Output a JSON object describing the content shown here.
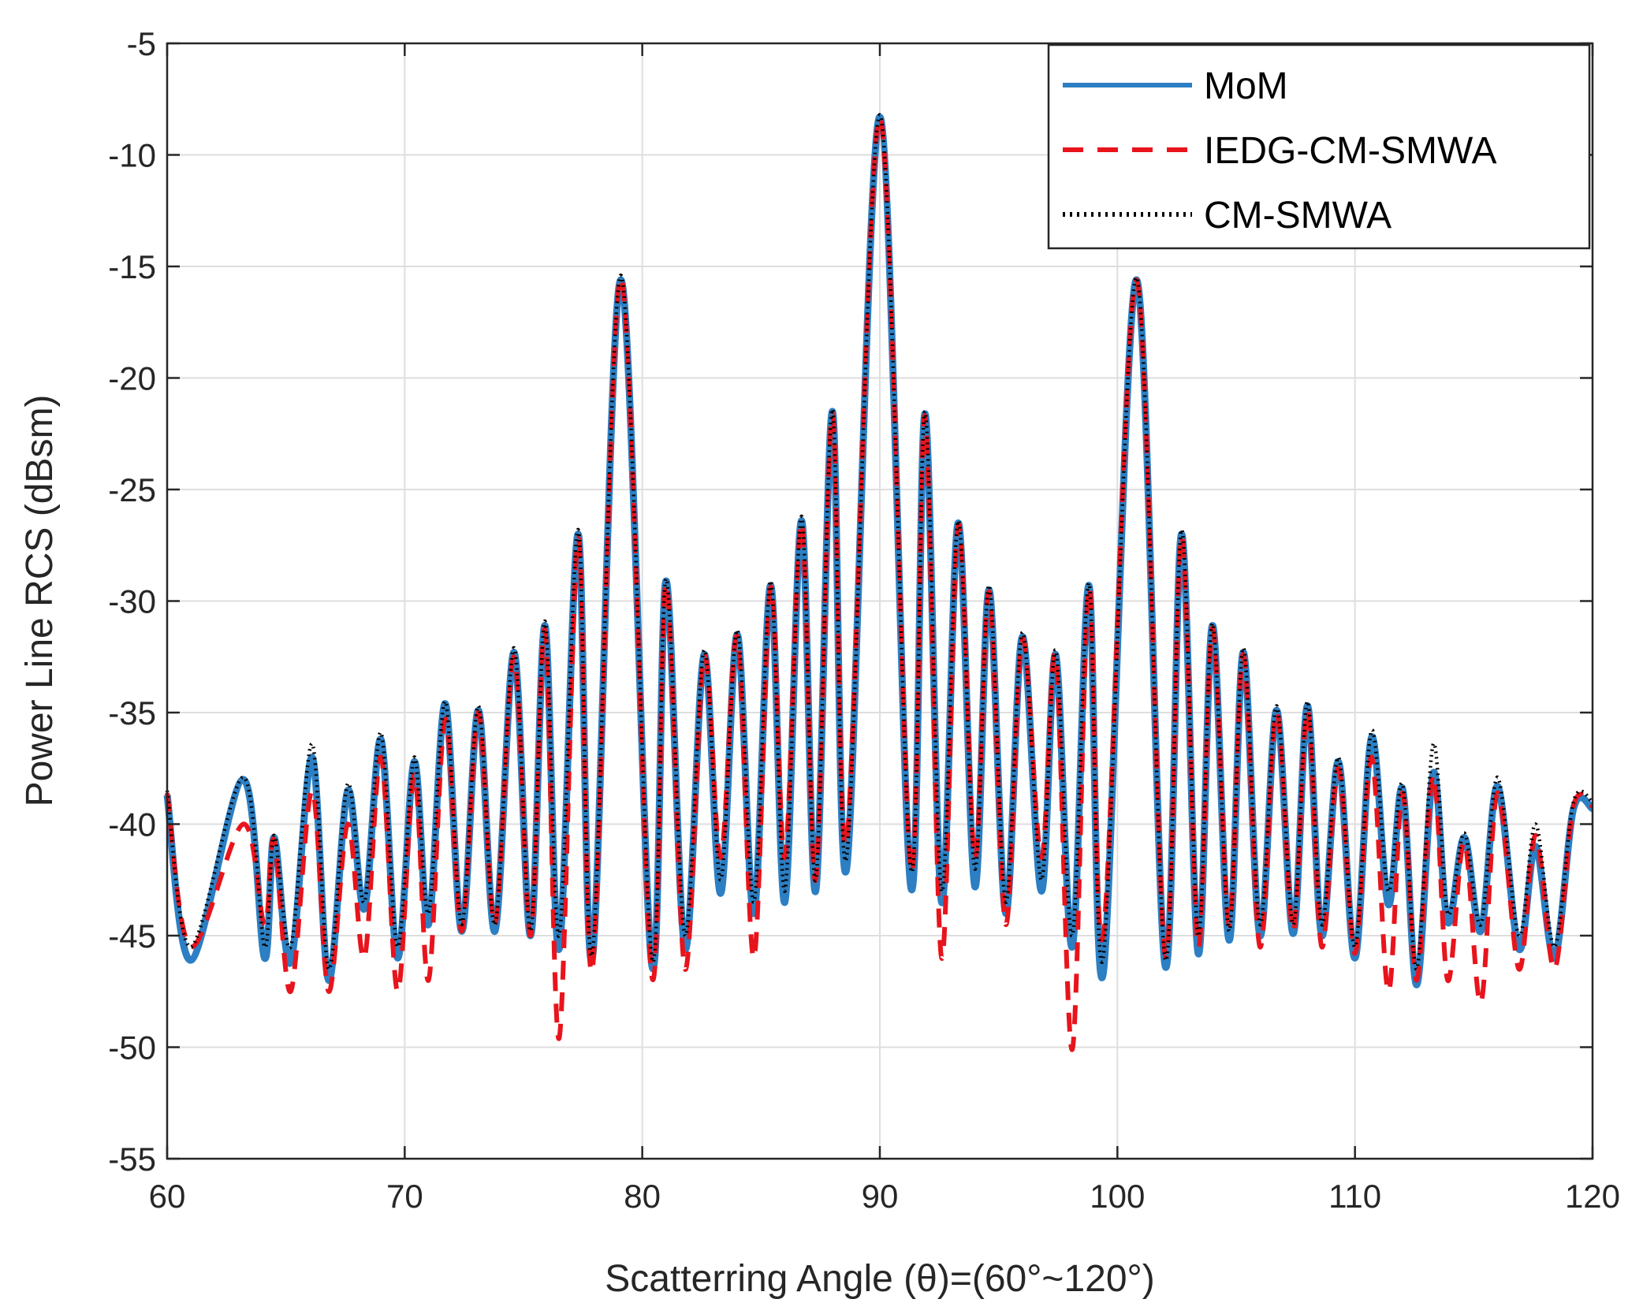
{
  "chart_data": {
    "type": "line",
    "title": "",
    "xlabel": "Scatterring Angle (θ)=(60°~120°)",
    "ylabel": "Power Line RCS (dBsm)",
    "xlim": [
      60,
      120
    ],
    "ylim": [
      -55,
      -5
    ],
    "xticks": [
      60,
      70,
      80,
      90,
      100,
      110,
      120
    ],
    "yticks": [
      -5,
      -10,
      -15,
      -20,
      -25,
      -30,
      -35,
      -40,
      -45,
      -50,
      -55
    ],
    "xtick_labels": [
      "60",
      "70",
      "80",
      "90",
      "100",
      "110",
      "120"
    ],
    "ytick_labels": [
      "-5",
      "-10",
      "-15",
      "-20",
      "-25",
      "-30",
      "-35",
      "-40",
      "-45",
      "-50",
      "-55"
    ],
    "grid": true,
    "legend_position": "top-right",
    "x": [
      60,
      61.0,
      63.2,
      64.1,
      64.5,
      65.2,
      66.1,
      66.8,
      67.6,
      68.3,
      69.0,
      69.7,
      70.4,
      71.0,
      71.7,
      72.4,
      73.1,
      73.8,
      74.6,
      75.3,
      75.9,
      76.5,
      77.3,
      77.9,
      79.1,
      80.4,
      81.0,
      81.8,
      82.6,
      83.3,
      84.0,
      84.7,
      85.4,
      86.0,
      86.7,
      87.3,
      88.0,
      88.6,
      90.0,
      91.3,
      91.9,
      92.6,
      93.3,
      94.0,
      94.6,
      95.3,
      96.0,
      96.8,
      97.4,
      98.1,
      98.8,
      99.4,
      100.8,
      102.0,
      102.7,
      103.4,
      104.0,
      104.7,
      105.3,
      106.0,
      106.7,
      107.4,
      108.0,
      108.6,
      109.3,
      110.0,
      110.7,
      111.4,
      112.0,
      112.6,
      113.3,
      113.9,
      114.6,
      115.3,
      116.0,
      116.9,
      117.6,
      118.4,
      119.2,
      120
    ],
    "series": [
      {
        "name": "MoM",
        "color": "#2c7fc3",
        "style": "solid",
        "values": [
          -38.7,
          -46.1,
          -38.0,
          -46.0,
          -40.6,
          -46.2,
          -37.0,
          -47.0,
          -38.5,
          -43.8,
          -36.2,
          -46.0,
          -37.2,
          -44.5,
          -34.6,
          -44.8,
          -34.9,
          -44.8,
          -32.3,
          -45.0,
          -31.1,
          -45.6,
          -27.0,
          -46.0,
          -15.6,
          -46.3,
          -29.1,
          -45.6,
          -32.4,
          -43.1,
          -31.5,
          -44.0,
          -29.3,
          -43.5,
          -26.4,
          -43.0,
          -21.5,
          -42.0,
          -8.3,
          -42.8,
          -21.6,
          -43.5,
          -26.5,
          -42.8,
          -29.5,
          -44.0,
          -31.6,
          -43.0,
          -32.4,
          -45.5,
          -29.3,
          -46.7,
          -15.6,
          -46.3,
          -27.0,
          -45.8,
          -31.1,
          -45.2,
          -32.3,
          -45.0,
          -34.9,
          -44.9,
          -34.7,
          -45.0,
          -37.2,
          -46.0,
          -36.1,
          -43.6,
          -38.4,
          -47.2,
          -37.7,
          -44.4,
          -40.6,
          -44.8,
          -38.3,
          -45.6,
          -41.0,
          -46.0,
          -39.3,
          -39.3
        ]
      },
      {
        "name": "IEDG-CM-SMWA",
        "color": "#e8141c",
        "style": "dashed",
        "values": [
          -38.6,
          -45.5,
          -40.0,
          -44.5,
          -40.7,
          -47.5,
          -38.5,
          -47.5,
          -40.0,
          -46.0,
          -37.0,
          -47.5,
          -37.8,
          -47.0,
          -35.3,
          -44.8,
          -35.0,
          -44.5,
          -32.5,
          -45.0,
          -31.3,
          -49.6,
          -27.2,
          -46.5,
          -15.5,
          -46.8,
          -29.2,
          -46.5,
          -32.5,
          -41.5,
          -31.6,
          -46.0,
          -29.4,
          -41.5,
          -26.5,
          -42.5,
          -21.6,
          -40.8,
          -8.3,
          -42.0,
          -21.7,
          -46.0,
          -26.6,
          -41.5,
          -29.6,
          -44.5,
          -31.7,
          -41.5,
          -32.5,
          -50.1,
          -29.4,
          -45.0,
          -15.6,
          -45.8,
          -27.1,
          -45.5,
          -31.2,
          -44.5,
          -32.4,
          -45.5,
          -35.0,
          -44.8,
          -34.9,
          -45.5,
          -37.5,
          -45.8,
          -37.0,
          -47.5,
          -38.6,
          -47.0,
          -37.8,
          -47.0,
          -40.8,
          -48.0,
          -38.6,
          -46.5,
          -40.5,
          -46.5,
          -39.2,
          -39.2
        ]
      },
      {
        "name": "CM-SMWA",
        "color": "#000000",
        "style": "dotted",
        "values": [
          -38.5,
          -45.5,
          -37.9,
          -45.5,
          -40.5,
          -45.5,
          -36.4,
          -46.5,
          -38.2,
          -43.5,
          -35.9,
          -45.5,
          -37.0,
          -44.0,
          -34.5,
          -44.5,
          -34.7,
          -44.5,
          -32.1,
          -44.8,
          -30.9,
          -45.0,
          -26.8,
          -45.8,
          -15.4,
          -46.0,
          -29.0,
          -45.0,
          -32.2,
          -42.5,
          -31.3,
          -43.5,
          -29.1,
          -43.0,
          -26.2,
          -42.5,
          -21.4,
          -41.5,
          -8.2,
          -42.0,
          -21.5,
          -43.0,
          -26.4,
          -42.0,
          -29.3,
          -43.5,
          -31.4,
          -42.5,
          -32.2,
          -45.0,
          -29.2,
          -46.0,
          -15.5,
          -46.0,
          -26.8,
          -45.0,
          -31.0,
          -44.8,
          -32.1,
          -44.5,
          -34.7,
          -44.5,
          -34.5,
          -44.5,
          -37.0,
          -45.5,
          -35.8,
          -43.0,
          -38.2,
          -46.5,
          -36.4,
          -44.0,
          -40.4,
          -44.5,
          -37.9,
          -45.0,
          -40.0,
          -45.5,
          -39.0,
          -39.0
        ]
      }
    ]
  }
}
